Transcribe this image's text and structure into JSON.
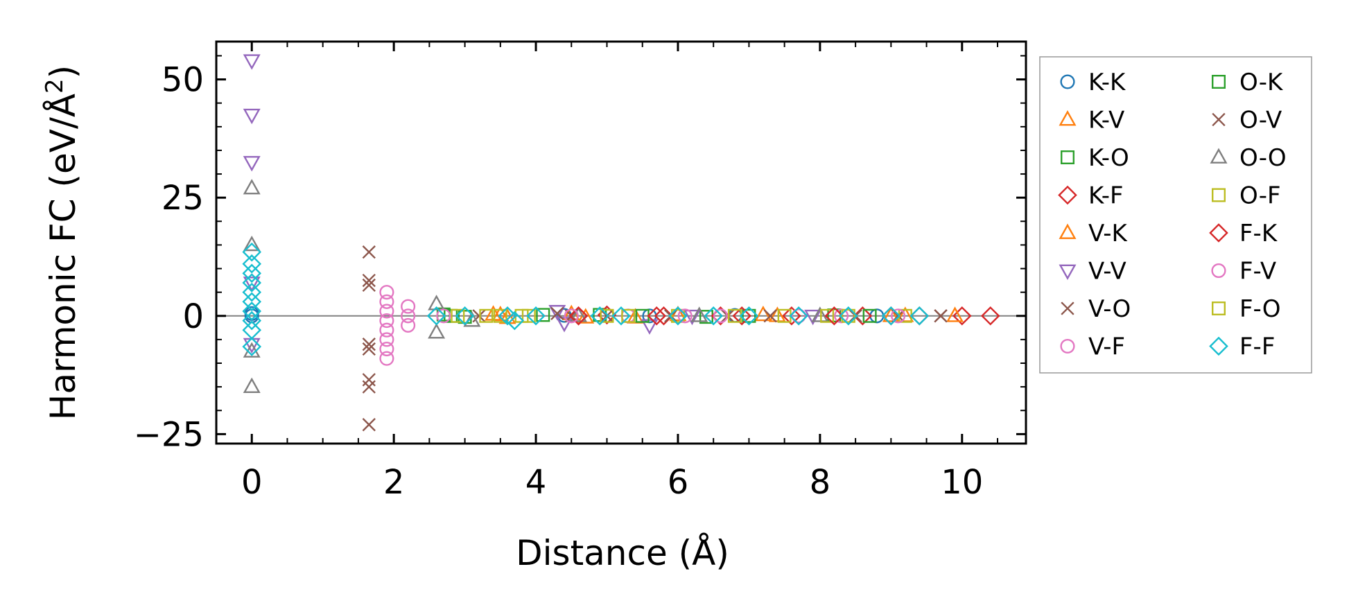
{
  "chart_data": {
    "type": "scatter",
    "xlabel": "Distance (Å)",
    "ylabel_main": "Harmonic FC (eV/Å",
    "ylabel_sup": "2",
    "ylabel_close": ")",
    "xlim": [
      -0.5,
      10.9
    ],
    "ylim": [
      -27,
      58
    ],
    "xticks": [
      0,
      2,
      4,
      6,
      8,
      10
    ],
    "xtick_labels": [
      "0",
      "2",
      "4",
      "6",
      "8",
      "10"
    ],
    "yticks": [
      -25,
      0,
      25,
      50
    ],
    "ytick_labels": [
      "−25",
      "0",
      "25",
      "50"
    ],
    "zero_line": true,
    "legend_location": "outside-right",
    "series": [
      {
        "name": "K-K",
        "marker": "circle",
        "color": "#1f77b4",
        "points": [
          [
            0,
            0
          ],
          [
            0,
            0.5
          ],
          [
            4.4,
            0.1
          ],
          [
            5.6,
            0
          ],
          [
            6.8,
            0.1
          ],
          [
            8.8,
            0
          ]
        ]
      },
      {
        "name": "K-V",
        "marker": "triangle",
        "color": "#ff7f0e",
        "points": [
          [
            3.4,
            0.3
          ],
          [
            3.6,
            -0.4
          ],
          [
            4.5,
            0.4
          ],
          [
            5.4,
            -0.3
          ],
          [
            7.2,
            0.2
          ],
          [
            9.2,
            0
          ]
        ]
      },
      {
        "name": "K-O",
        "marker": "square",
        "color": "#2ca02c",
        "points": [
          [
            2.7,
            0.3
          ],
          [
            3.0,
            -0.2
          ],
          [
            4.9,
            0.2
          ],
          [
            6.4,
            -0.2
          ],
          [
            8.2,
            0.1
          ]
        ]
      },
      {
        "name": "K-F",
        "marker": "diamond",
        "color": "#d62728",
        "points": [
          [
            4.6,
            0
          ],
          [
            5.0,
            0.2
          ],
          [
            5.8,
            0
          ],
          [
            6.6,
            0
          ],
          [
            7.6,
            0
          ],
          [
            8.6,
            0
          ],
          [
            9.4,
            0
          ],
          [
            10.0,
            0
          ],
          [
            10.4,
            0
          ]
        ]
      },
      {
        "name": "V-K",
        "marker": "triangle",
        "color": "#ff7f0e",
        "points": [
          [
            3.5,
            0.2
          ],
          [
            4.7,
            -0.3
          ],
          [
            6.0,
            0.2
          ],
          [
            7.4,
            0
          ],
          [
            9.0,
            0
          ],
          [
            9.9,
            0
          ]
        ]
      },
      {
        "name": "V-V",
        "marker": "triangle_down",
        "color": "#9467bd",
        "points": [
          [
            0,
            54
          ],
          [
            0,
            42.5
          ],
          [
            0,
            32.5
          ],
          [
            0,
            7
          ],
          [
            0,
            -6
          ],
          [
            4.3,
            1
          ],
          [
            4.4,
            -1.5
          ],
          [
            5.6,
            -2
          ],
          [
            6.2,
            0
          ],
          [
            7.9,
            0
          ]
        ]
      },
      {
        "name": "V-O",
        "marker": "x",
        "color": "#8c564b",
        "points": [
          [
            1.65,
            13.5
          ],
          [
            1.65,
            7.5
          ],
          [
            1.65,
            6.5
          ],
          [
            1.65,
            -6
          ],
          [
            1.65,
            -7
          ],
          [
            1.65,
            -13.5
          ],
          [
            1.65,
            -15
          ],
          [
            1.65,
            -23
          ],
          [
            4.3,
            0.5
          ],
          [
            5.0,
            0
          ],
          [
            6.7,
            0
          ],
          [
            8.5,
            0
          ],
          [
            9.7,
            0
          ]
        ]
      },
      {
        "name": "V-F",
        "marker": "circle",
        "color": "#e377c2",
        "points": [
          [
            1.9,
            5
          ],
          [
            1.9,
            3
          ],
          [
            1.9,
            1
          ],
          [
            1.9,
            -1
          ],
          [
            1.9,
            -3
          ],
          [
            1.9,
            -5
          ],
          [
            1.9,
            -7
          ],
          [
            1.9,
            -9
          ],
          [
            2.2,
            2
          ],
          [
            2.2,
            0
          ],
          [
            2.2,
            -2
          ],
          [
            5.3,
            0
          ],
          [
            6.6,
            0
          ],
          [
            8.3,
            0
          ]
        ]
      },
      {
        "name": "O-K",
        "marker": "square",
        "color": "#2ca02c",
        "points": [
          [
            2.8,
            0
          ],
          [
            4.1,
            0.2
          ],
          [
            5.5,
            0
          ],
          [
            7.0,
            0
          ],
          [
            8.7,
            0
          ]
        ]
      },
      {
        "name": "O-V",
        "marker": "x",
        "color": "#8c564b",
        "points": [
          [
            3.2,
            0
          ],
          [
            4.5,
            0
          ],
          [
            5.9,
            0
          ],
          [
            7.3,
            0
          ],
          [
            9.1,
            0
          ],
          [
            9.7,
            0
          ]
        ]
      },
      {
        "name": "O-O",
        "marker": "triangle",
        "color": "#7f7f7f",
        "points": [
          [
            0,
            27
          ],
          [
            0,
            15
          ],
          [
            0,
            -7.5
          ],
          [
            0,
            -15
          ],
          [
            2.6,
            2.5
          ],
          [
            2.6,
            -3.5
          ],
          [
            3.1,
            -1
          ],
          [
            4.6,
            0
          ],
          [
            6.3,
            0
          ],
          [
            8.0,
            0
          ]
        ]
      },
      {
        "name": "O-F",
        "marker": "square",
        "color": "#bcbd22",
        "points": [
          [
            2.9,
            0
          ],
          [
            3.3,
            0
          ],
          [
            3.8,
            0
          ],
          [
            5.0,
            0
          ],
          [
            6.0,
            0
          ],
          [
            7.5,
            0
          ],
          [
            8.1,
            0
          ],
          [
            9.2,
            0
          ]
        ]
      },
      {
        "name": "F-K",
        "marker": "diamond",
        "color": "#d62728",
        "points": [
          [
            4.6,
            0
          ],
          [
            5.7,
            0
          ],
          [
            6.9,
            0
          ],
          [
            8.2,
            0
          ],
          [
            9.0,
            0
          ]
        ]
      },
      {
        "name": "F-V",
        "marker": "circle",
        "color": "#e377c2",
        "points": [
          [
            2.7,
            0
          ],
          [
            4.5,
            0
          ],
          [
            6.1,
            0
          ],
          [
            7.7,
            0
          ],
          [
            9.1,
            0
          ]
        ]
      },
      {
        "name": "F-O",
        "marker": "square",
        "color": "#bcbd22",
        "points": [
          [
            3.5,
            0
          ],
          [
            3.9,
            0
          ],
          [
            5.3,
            0
          ],
          [
            6.8,
            0
          ],
          [
            8.4,
            0
          ]
        ]
      },
      {
        "name": "F-F",
        "marker": "diamond",
        "color": "#17becf",
        "points": [
          [
            0,
            13.5
          ],
          [
            0,
            11
          ],
          [
            0,
            9
          ],
          [
            0,
            7
          ],
          [
            0,
            5
          ],
          [
            0,
            3
          ],
          [
            0,
            1
          ],
          [
            0,
            -1
          ],
          [
            0,
            -3
          ],
          [
            0,
            -6.5
          ],
          [
            2.6,
            0
          ],
          [
            3.0,
            0
          ],
          [
            3.6,
            0
          ],
          [
            3.7,
            -1
          ],
          [
            4.0,
            0
          ],
          [
            4.9,
            0
          ],
          [
            5.2,
            0
          ],
          [
            6.0,
            0
          ],
          [
            6.5,
            0
          ],
          [
            7.0,
            0
          ],
          [
            7.7,
            0
          ],
          [
            8.4,
            0
          ],
          [
            9.0,
            0
          ],
          [
            9.4,
            0
          ]
        ]
      }
    ],
    "legend_columns": [
      [
        "K-K",
        "K-V",
        "K-O",
        "K-F",
        "V-K",
        "V-V",
        "V-O",
        "V-F"
      ],
      [
        "O-K",
        "O-V",
        "O-O",
        "O-F",
        "F-K",
        "F-V",
        "F-O",
        "F-F"
      ]
    ]
  }
}
